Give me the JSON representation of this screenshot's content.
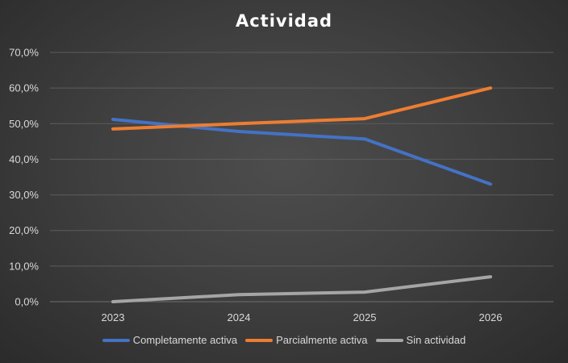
{
  "chart_data": {
    "type": "line",
    "title": "Actividad",
    "categories": [
      "2023",
      "2024",
      "2025",
      "2026"
    ],
    "ylim": [
      0,
      70
    ],
    "yticks": [
      "0,0%",
      "10,0%",
      "20,0%",
      "30,0%",
      "40,0%",
      "50,0%",
      "60,0%",
      "70,0%"
    ],
    "grid": true,
    "legend_position": "bottom",
    "series": [
      {
        "name": "Completamente activa",
        "color": "#4472c4",
        "values": [
          51.2,
          47.8,
          45.7,
          33.0
        ]
      },
      {
        "name": "Parcialmente activa",
        "color": "#ed7d31",
        "values": [
          48.5,
          50.0,
          51.4,
          60.0
        ]
      },
      {
        "name": "Sin actividad",
        "color": "#a5a5a5",
        "values": [
          0.0,
          2.0,
          2.7,
          7.0
        ]
      }
    ]
  }
}
